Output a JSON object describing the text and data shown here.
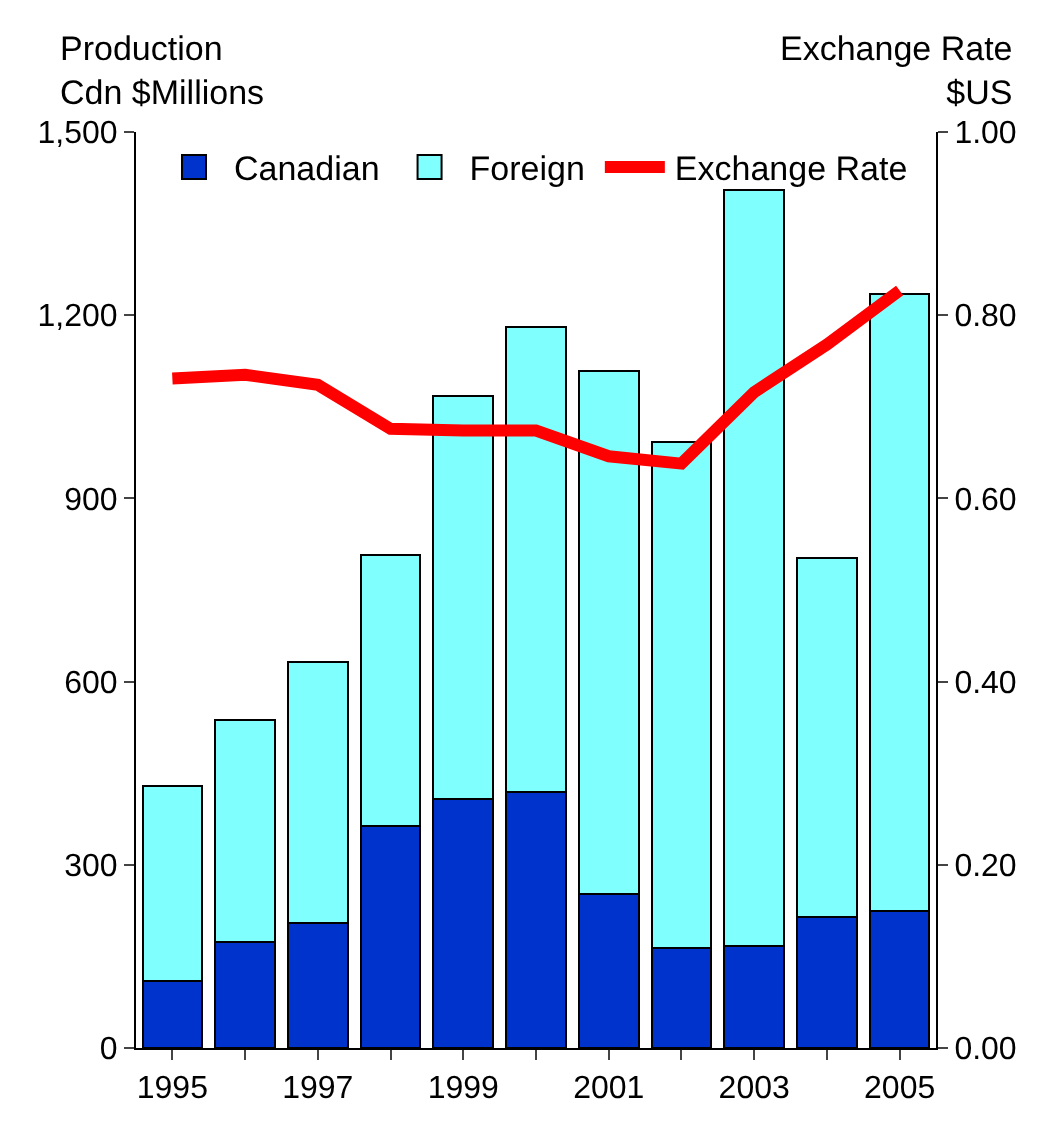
{
  "chart_data": {
    "type": "bar",
    "stacked": true,
    "ylabel": "Production\nCdn $Millions",
    "y2label": "Exchange Rate\n$US",
    "x": [
      1995,
      1996,
      1997,
      1998,
      1999,
      2000,
      2001,
      2002,
      2003,
      2004,
      2005
    ],
    "xlim": [
      1994.5,
      2005.5
    ],
    "xticks": [
      1995,
      {
        "value": 1996,
        "label": null
      },
      1997,
      {
        "value": 1998,
        "label": null
      },
      1999,
      {
        "value": 2000,
        "label": null
      },
      2001,
      {
        "value": 2002,
        "label": null
      },
      2003,
      {
        "value": 2004,
        "label": null
      },
      2005
    ],
    "ylim": [
      0,
      1500
    ],
    "yticks": [
      0,
      300,
      600,
      900,
      {
        "value": 1200,
        "label": "1,200"
      },
      {
        "value": 1500,
        "label": "1,500"
      }
    ],
    "y2lim": [
      0,
      1
    ],
    "y2ticks": [
      {
        "value": 0,
        "label": "0.00"
      },
      {
        "value": 0.2,
        "label": "0.20"
      },
      {
        "value": 0.4,
        "label": "0.40"
      },
      {
        "value": 0.6,
        "label": "0.60"
      },
      {
        "value": 0.8,
        "label": "0.80"
      },
      {
        "value": 1,
        "label": "1.00"
      }
    ],
    "series": [
      {
        "name": "Canadian",
        "color": "#0033cc",
        "values": [
          110,
          174,
          205,
          363,
          407,
          420,
          253,
          164,
          167,
          215,
          224
        ]
      },
      {
        "name": "Foreign",
        "color": "#80ffff",
        "values": [
          319,
          363,
          427,
          445,
          660,
          761,
          855,
          828,
          1238,
          587,
          1011
        ]
      },
      {
        "name": "Exchange Rate",
        "type": "line",
        "axis": "y2",
        "color": "#ff0000",
        "values": [
          0.731,
          0.735,
          0.724,
          0.676,
          0.674,
          0.674,
          0.646,
          0.638,
          0.716,
          0.768,
          0.827
        ]
      }
    ],
    "legend": "top",
    "marker": "none",
    "line_style": "solid"
  }
}
